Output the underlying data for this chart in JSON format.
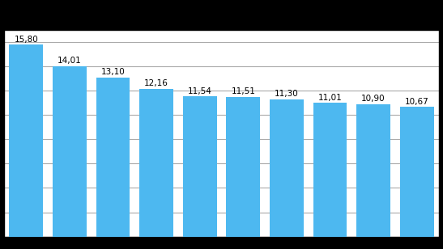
{
  "values": [
    15.8,
    14.01,
    13.1,
    12.16,
    11.54,
    11.51,
    11.3,
    11.01,
    10.9,
    10.67
  ],
  "labels": [
    "15,80",
    "14,01",
    "13,10",
    "12,16",
    "11,54",
    "11,51",
    "11,30",
    "11,01",
    "10,90",
    "10,67"
  ],
  "bar_color": "#4db8f0",
  "background_color": "#000000",
  "plot_bg_color": "#ffffff",
  "ylim": [
    0,
    17
  ],
  "grid_color": "#aaaaaa",
  "grid_linewidth": 0.8,
  "bar_edge_color": "none",
  "label_fontsize": 7.5,
  "label_color": "#000000",
  "bar_width": 0.78,
  "n_gridlines": 9,
  "spine_color": "#000000",
  "spine_linewidth": 1.0
}
